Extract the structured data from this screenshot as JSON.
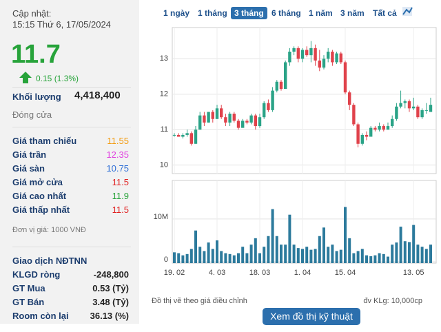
{
  "header": {
    "label": "Cập nhật:",
    "time": "15:15 Thứ 6, 17/05/2024"
  },
  "quote": {
    "price": "11.7",
    "change": "0.15 (1.3%)",
    "volume_label": "Khối lượng",
    "volume": "4,418,400",
    "status": "Đóng cửa",
    "color": "#27a33a"
  },
  "price_rows": [
    {
      "label": "Giá tham chiếu",
      "value": "11.55",
      "color": "#f39c12"
    },
    {
      "label": "Giá trần",
      "value": "12.35",
      "color": "#e040e0"
    },
    {
      "label": "Giá sàn",
      "value": "10.75",
      "color": "#2f6fd6"
    },
    {
      "label": "Giá mở cửa",
      "value": "11.5",
      "color": "#e02020"
    },
    {
      "label": "Giá cao nhất",
      "value": "11.9",
      "color": "#27a33a"
    },
    {
      "label": "Giá thấp nhất",
      "value": "11.5",
      "color": "#e02020"
    }
  ],
  "unit_note": "Đơn vị giá: 1000 VNĐ",
  "foreign": {
    "title": "Giao dịch NĐTNN",
    "rows": [
      {
        "label": "KLGD ròng",
        "value": "-248,800"
      },
      {
        "label": "GT Mua",
        "value": "0.53 (Tỷ)"
      },
      {
        "label": "GT Bán",
        "value": "3.48 (Tỷ)"
      },
      {
        "label": "Room còn lại",
        "value": "36.13 (%)"
      }
    ]
  },
  "tabs": {
    "items": [
      "1 ngày",
      "1 tháng",
      "3 tháng",
      "6 tháng",
      "1 năm",
      "3 năm",
      "Tất cả"
    ],
    "active": 2
  },
  "chart_data": {
    "type": "candlestick",
    "categories": [
      "19. 02",
      null,
      null,
      null,
      null,
      null,
      null,
      null,
      null,
      null,
      "4. 03",
      null,
      null,
      null,
      null,
      null,
      null,
      null,
      null,
      null,
      "18. 03",
      null,
      null,
      null,
      null,
      null,
      null,
      null,
      null,
      null,
      "1. 04",
      null,
      null,
      null,
      null,
      null,
      null,
      null,
      null,
      null,
      "15. 04",
      null,
      null,
      null,
      null,
      null,
      null,
      null,
      null,
      null,
      null,
      null,
      null,
      null,
      null,
      null,
      "13. 05",
      null,
      null,
      null,
      null
    ],
    "open": [
      10.85,
      10.85,
      10.8,
      10.85,
      10.9,
      10.6,
      11.0,
      11.4,
      11.2,
      11.5,
      11.3,
      11.6,
      11.35,
      11.2,
      11.45,
      11.25,
      11.05,
      11.25,
      11.2,
      11.4,
      11.1,
      11.35,
      11.75,
      11.55,
      12.1,
      12.35,
      12.15,
      12.9,
      13.2,
      13.3,
      13.0,
      13.25,
      13.1,
      13.3,
      12.95,
      12.75,
      13.0,
      13.2,
      12.9,
      13.15,
      12.9,
      12.05,
      11.7,
      11.15,
      10.6,
      10.85,
      10.8,
      11.05,
      11.0,
      11.1,
      11.0,
      11.1,
      11.3,
      11.65,
      11.75,
      11.8,
      11.6,
      11.65,
      11.35,
      11.55,
      11.5
    ],
    "high": [
      10.9,
      10.9,
      10.9,
      11.0,
      10.95,
      11.1,
      11.5,
      11.5,
      11.5,
      11.55,
      11.7,
      11.7,
      11.45,
      11.5,
      11.5,
      11.3,
      11.3,
      11.3,
      11.45,
      11.45,
      11.45,
      11.8,
      11.85,
      12.2,
      12.4,
      12.4,
      12.95,
      13.3,
      13.35,
      13.35,
      13.3,
      13.35,
      13.5,
      13.4,
      13.25,
      13.1,
      13.3,
      13.25,
      13.2,
      13.2,
      12.95,
      12.1,
      11.75,
      11.2,
      10.9,
      10.95,
      11.1,
      11.1,
      11.2,
      11.15,
      11.2,
      11.4,
      11.75,
      12.1,
      11.85,
      11.85,
      11.9,
      11.7,
      11.6,
      11.75,
      11.9
    ],
    "low": [
      10.8,
      10.8,
      10.75,
      10.8,
      10.55,
      10.6,
      11.0,
      11.1,
      11.2,
      11.2,
      11.3,
      11.3,
      11.1,
      11.1,
      11.2,
      11.0,
      11.05,
      11.15,
      11.15,
      11.0,
      11.05,
      11.3,
      11.5,
      11.5,
      12.05,
      12.1,
      12.15,
      12.8,
      13.1,
      12.9,
      12.9,
      13.05,
      12.9,
      12.8,
      12.65,
      12.7,
      12.9,
      12.8,
      12.85,
      12.85,
      12.0,
      11.55,
      11.1,
      10.5,
      10.55,
      10.7,
      10.8,
      10.95,
      10.95,
      10.95,
      11.0,
      11.05,
      11.25,
      11.6,
      11.6,
      11.5,
      11.55,
      11.3,
      11.3,
      11.45,
      11.5
    ],
    "close": [
      10.85,
      10.8,
      10.85,
      10.9,
      10.6,
      11.0,
      11.4,
      11.2,
      11.5,
      11.3,
      11.6,
      11.35,
      11.2,
      11.45,
      11.25,
      11.05,
      11.25,
      11.2,
      11.4,
      11.1,
      11.35,
      11.75,
      11.55,
      12.1,
      12.35,
      12.15,
      12.9,
      13.2,
      13.3,
      13.0,
      13.25,
      13.1,
      13.3,
      12.95,
      12.75,
      13.0,
      13.2,
      12.9,
      13.15,
      12.9,
      12.05,
      11.7,
      11.15,
      10.6,
      10.85,
      10.8,
      11.05,
      11.0,
      11.1,
      11.0,
      11.1,
      11.3,
      11.65,
      11.75,
      11.8,
      11.6,
      11.65,
      11.35,
      11.55,
      11.55,
      11.7
    ],
    "volume": [
      2.2,
      2.0,
      1.5,
      1.8,
      3.0,
      7.3,
      3.5,
      2.5,
      4.5,
      3.0,
      5.0,
      2.5,
      2.0,
      1.8,
      1.5,
      2.0,
      3.5,
      2.0,
      4.0,
      5.5,
      2.0,
      3.5,
      6.0,
      12.3,
      6.0,
      4.0,
      4.0,
      11.0,
      4.0,
      3.2,
      3.0,
      3.5,
      2.8,
      3.0,
      6.0,
      8.0,
      3.5,
      4.0,
      2.5,
      2.8,
      12.8,
      5.5,
      2.0,
      2.5,
      3.0,
      1.5,
      1.3,
      1.5,
      2.0,
      1.8,
      1.2,
      4.0,
      4.5,
      8.2,
      4.8,
      4.6,
      8.6,
      4.0,
      3.5,
      3.0,
      4.0
    ],
    "ylim": [
      9.76,
      13.88
    ],
    "yticks": [
      10,
      11,
      12,
      13
    ],
    "volume_ylim": [
      0,
      19
    ],
    "volume_yticks": [
      0,
      {
        "value": 10,
        "label": "10M"
      }
    ],
    "grid": true,
    "up_color": "#2aa387",
    "down_color": "#e0424b",
    "volume_color": "#2c7a9c",
    "note_left": "Đồ thị vẽ theo giá điều chỉnh",
    "note_right": "đv KLg: 10,000cp"
  },
  "button": "Xem đồ thị kỹ thuật"
}
